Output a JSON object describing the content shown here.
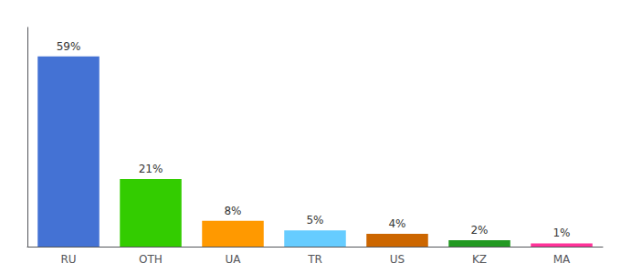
{
  "chart_data": {
    "type": "bar",
    "categories": [
      "RU",
      "OTH",
      "UA",
      "TR",
      "US",
      "KZ",
      "MA"
    ],
    "values": [
      59,
      21,
      8,
      5,
      4,
      2,
      1
    ],
    "value_labels": [
      "59%",
      "21%",
      "8%",
      "5%",
      "4%",
      "2%",
      "1%"
    ],
    "colors": [
      "#4472d4",
      "#33cc00",
      "#ff9900",
      "#66ccff",
      "#cc6600",
      "#229922",
      "#ff3399"
    ],
    "ylim": [
      0,
      68
    ],
    "grid": false,
    "data_labels": true,
    "tick_labels": "x"
  }
}
